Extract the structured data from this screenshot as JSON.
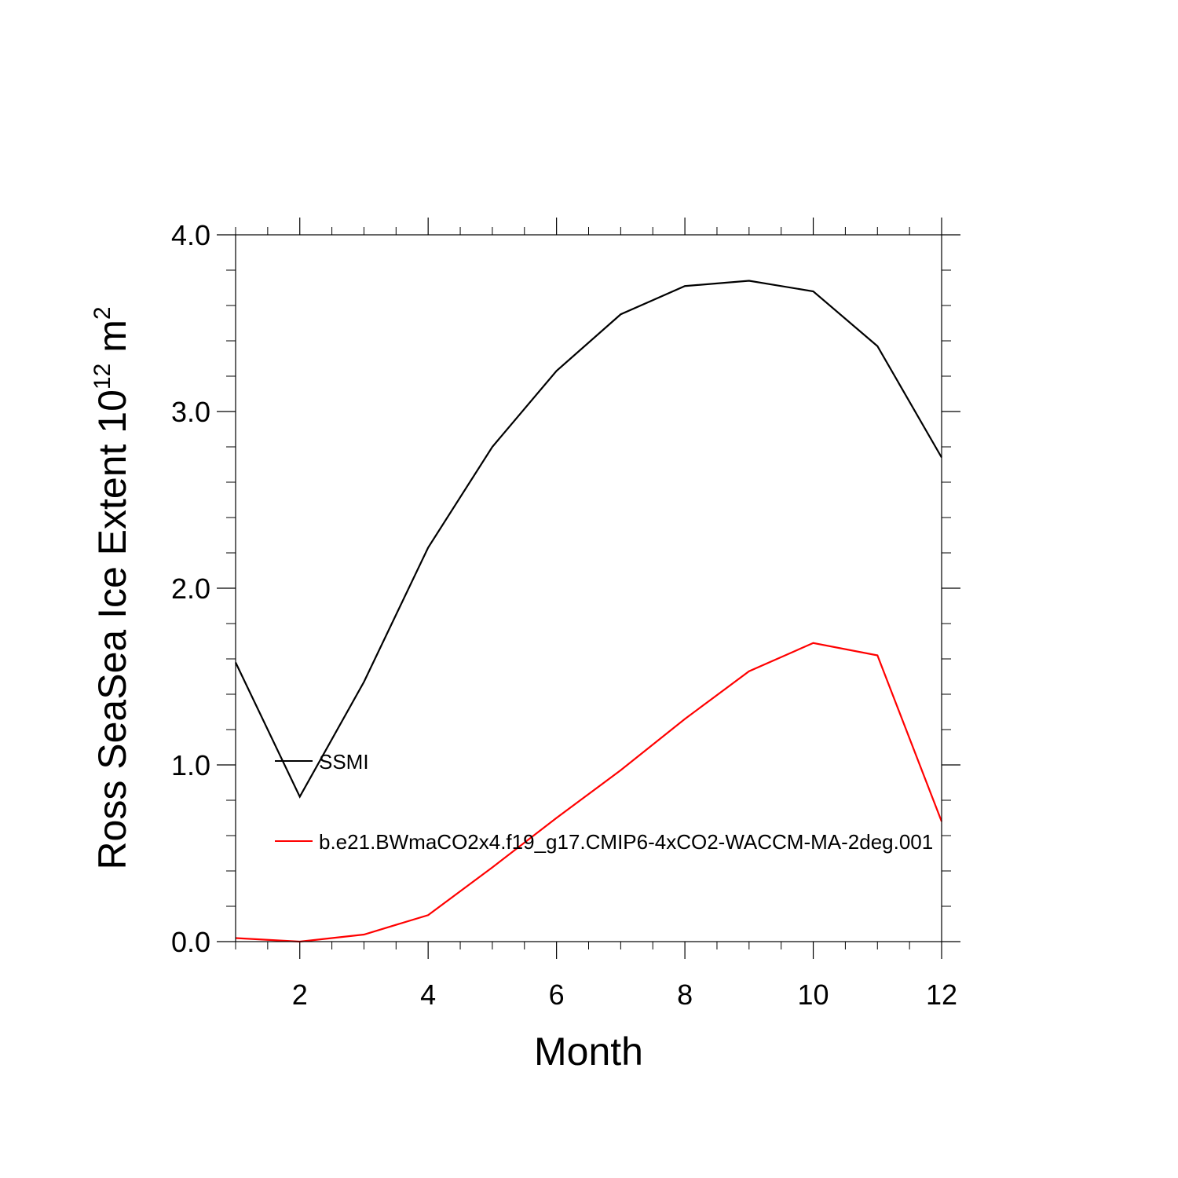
{
  "chart_data": {
    "type": "line",
    "title": "",
    "xlabel": "Month",
    "ylabel": {
      "prefix": "Ross SeaSea Ice Extent 10",
      "superscript": "12",
      "unit": " m",
      "unit_superscript": "2"
    },
    "xlim": [
      1,
      12
    ],
    "ylim": [
      0.0,
      4.0
    ],
    "x_ticks": [
      2,
      4,
      6,
      8,
      10,
      12
    ],
    "x_tick_labels": [
      "2",
      "4",
      "6",
      "8",
      "10",
      "12"
    ],
    "y_ticks": [
      0.0,
      1.0,
      2.0,
      3.0,
      4.0
    ],
    "y_tick_labels": [
      "0.0",
      "1.0",
      "2.0",
      "3.0",
      "4.0"
    ],
    "grid": false,
    "legend_position": "center-left (inside plot)",
    "x": [
      1,
      2,
      3,
      4,
      5,
      6,
      7,
      8,
      9,
      10,
      11,
      12
    ],
    "series": [
      {
        "name": "SSMI",
        "color": "#000000",
        "values": [
          1.58,
          0.82,
          1.47,
          2.23,
          2.8,
          3.23,
          3.55,
          3.71,
          3.74,
          3.68,
          3.37,
          2.74
        ]
      },
      {
        "name": "b.e21.BWmaCO2x4.f19_g17.CMIP6-4xCO2-WACCM-MA-2deg.001",
        "color": "#ff0000",
        "values": [
          0.02,
          0.0,
          0.04,
          0.15,
          0.42,
          0.7,
          0.97,
          1.26,
          1.53,
          1.69,
          1.62,
          0.68
        ]
      }
    ]
  }
}
